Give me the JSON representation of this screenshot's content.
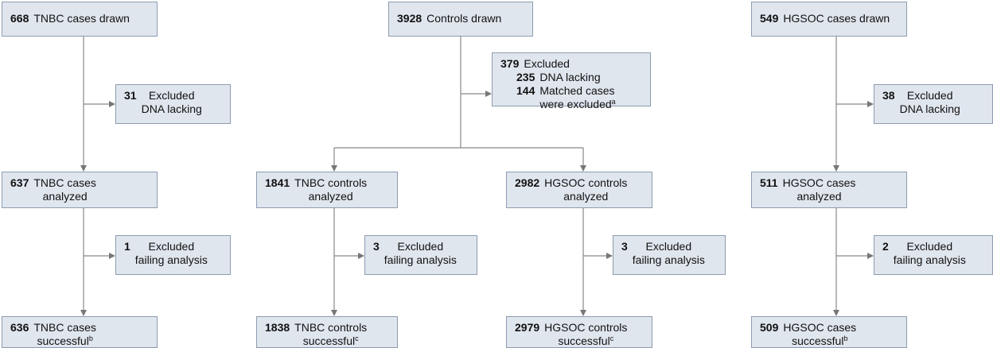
{
  "nodes": [
    {
      "count": 668,
      "lines": [
        "TNBC cases drawn"
      ]
    },
    {
      "count": 3928,
      "lines": [
        "Controls drawn"
      ]
    },
    {
      "count": 549,
      "lines": [
        "HGSOC cases drawn"
      ]
    },
    {
      "count": 31,
      "lines": [
        "Excluded",
        "DNA lacking"
      ]
    },
    {
      "count": 379,
      "lines": [
        "Excluded"
      ],
      "items": [
        {
          "count": 235,
          "lines": [
            "DNA lacking"
          ]
        },
        {
          "count": 144,
          "lines": [
            "Matched cases",
            "were excluded"
          ],
          "sup": "a"
        }
      ]
    },
    {
      "count": 38,
      "lines": [
        "Excluded",
        "DNA lacking"
      ]
    },
    {
      "count": 637,
      "lines": [
        "TNBC cases",
        "analyzed"
      ]
    },
    {
      "count": 1841,
      "lines": [
        "TNBC controls",
        "analyzed"
      ]
    },
    {
      "count": 2982,
      "lines": [
        "HGSOC controls",
        "analyzed"
      ]
    },
    {
      "count": 511,
      "lines": [
        "HGSOC cases",
        "analyzed"
      ]
    },
    {
      "count": 1,
      "lines": [
        "Excluded",
        "failing analysis"
      ]
    },
    {
      "count": 3,
      "lines": [
        "Excluded",
        "failing analysis"
      ]
    },
    {
      "count": 3,
      "lines": [
        "Excluded",
        "failing analysis"
      ]
    },
    {
      "count": 2,
      "lines": [
        "Excluded",
        "failing analysis"
      ]
    },
    {
      "count": 636,
      "lines": [
        "TNBC cases",
        "successful"
      ],
      "sup": "b"
    },
    {
      "count": 1838,
      "lines": [
        "TNBC controls",
        "successful"
      ],
      "sup": "c"
    },
    {
      "count": 2979,
      "lines": [
        "HGSOC controls",
        "successful"
      ],
      "sup": "c"
    },
    {
      "count": 509,
      "lines": [
        "HGSOC cases",
        "successful"
      ],
      "sup": "b"
    }
  ]
}
